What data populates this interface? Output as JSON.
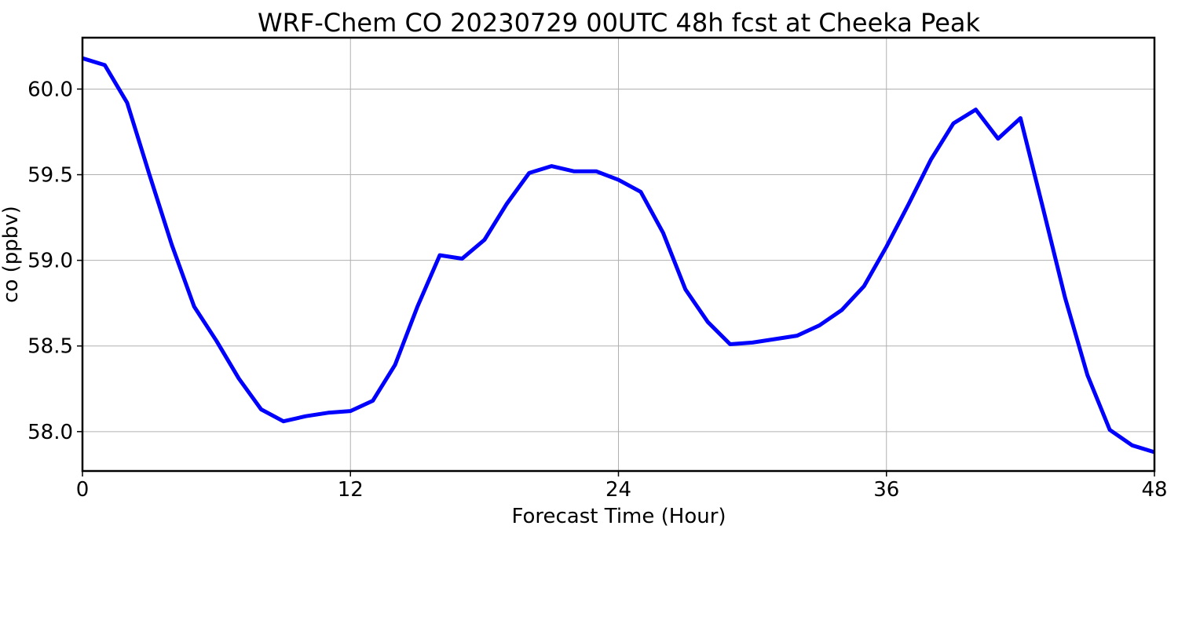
{
  "chart_data": {
    "type": "line",
    "title": "WRF-Chem CO  20230729 00UTC 48h fcst at Cheeka Peak",
    "xlabel": "Forecast Time (Hour)",
    "ylabel": "co  (ppbv)",
    "xlim": [
      0,
      48
    ],
    "ylim": [
      57.77,
      60.3
    ],
    "xticks": [
      "0",
      "12",
      "24",
      "36",
      "48"
    ],
    "yticks": [
      "58.0",
      "58.5",
      "59.0",
      "59.5",
      "60.0"
    ],
    "grid": true,
    "series": [
      {
        "color": "#0000ff",
        "x": [
          0,
          1,
          2,
          3,
          4,
          5,
          6,
          7,
          8,
          9,
          10,
          11,
          12,
          13,
          14,
          15,
          16,
          17,
          18,
          19,
          20,
          21,
          22,
          23,
          24,
          25,
          26,
          27,
          28,
          29,
          30,
          31,
          32,
          33,
          34,
          35,
          36,
          37,
          38,
          39,
          40,
          41,
          42,
          43,
          44,
          45,
          46,
          47,
          48
        ],
        "y": [
          60.18,
          60.14,
          59.92,
          59.5,
          59.09,
          58.73,
          58.53,
          58.31,
          58.13,
          58.06,
          58.09,
          58.11,
          58.12,
          58.18,
          58.39,
          58.73,
          59.03,
          59.01,
          59.12,
          59.33,
          59.51,
          59.55,
          59.52,
          59.52,
          59.47,
          59.4,
          59.16,
          58.83,
          58.64,
          58.51,
          58.52,
          58.54,
          58.56,
          58.62,
          58.71,
          58.85,
          59.08,
          59.33,
          59.59,
          59.8,
          59.88,
          59.71,
          59.83,
          59.31,
          58.78,
          58.33,
          58.01,
          57.92,
          57.88
        ]
      }
    ]
  }
}
